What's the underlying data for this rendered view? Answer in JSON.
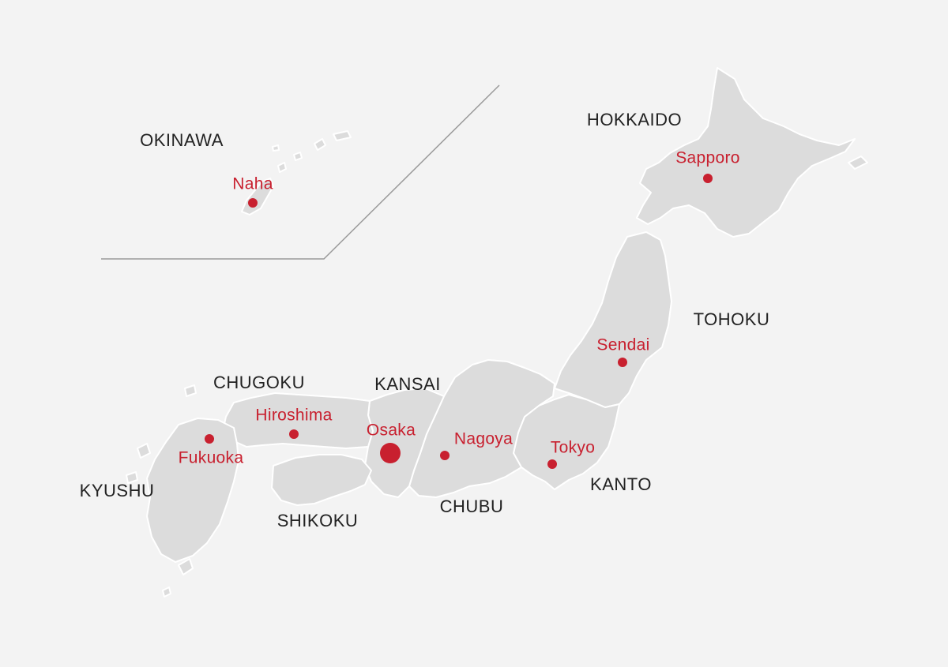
{
  "map": {
    "colors": {
      "background": "#f3f3f3",
      "land": "#dcdcdc",
      "border": "#ffffff",
      "region_text": "#222222",
      "city": "#c8202f",
      "divider": "#9a9a9a"
    },
    "regions": {
      "okinawa": "OKINAWA",
      "hokkaido": "HOKKAIDO",
      "tohoku": "TOHOKU",
      "chugoku": "CHUGOKU",
      "kansai": "KANSAI",
      "kyushu": "KYUSHU",
      "shikoku": "SHIKOKU",
      "chubu": "CHUBU",
      "kanto": "KANTO"
    },
    "cities": {
      "naha": "Naha",
      "sapporo": "Sapporo",
      "sendai": "Sendai",
      "hiroshima": "Hiroshima",
      "fukuoka": "Fukuoka",
      "osaka": "Osaka",
      "nagoya": "Nagoya",
      "tokyo": "Tokyo"
    },
    "highlighted_city": "Osaka"
  }
}
